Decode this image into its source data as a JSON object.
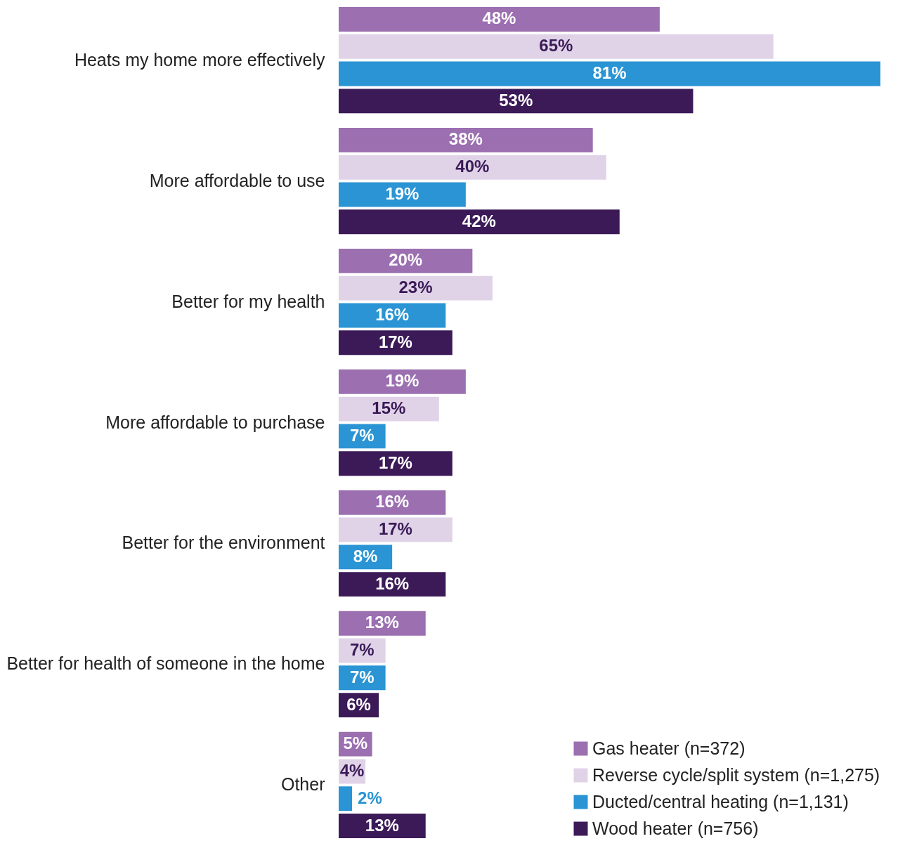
{
  "chart_data": {
    "type": "bar",
    "orientation": "horizontal",
    "legend": "bottom right",
    "categories": [
      "Heats my home more effectively",
      "More affordable to use",
      "Better for my health",
      "More affordable to purchase",
      "Better for the environment",
      "Better for health of someone in the home",
      "Other"
    ],
    "series": [
      {
        "name": "Gas heater (n=372)",
        "color": "#9b6fb0",
        "values": [
          48,
          38,
          20,
          19,
          16,
          13,
          5
        ],
        "value_labels": [
          "48%",
          "38%",
          "20%",
          "19%",
          "16%",
          "13%",
          "5%"
        ]
      },
      {
        "name": "Reverse cycle/split system (n=1,275)",
        "color": "#e0d3e8",
        "values": [
          65,
          40,
          23,
          15,
          17,
          7,
          4
        ],
        "value_labels": [
          "65%",
          "40%",
          "23%",
          "15%",
          "17%",
          "7%",
          "4%"
        ]
      },
      {
        "name": "Ducted/central heating (n=1,131)",
        "color": "#2a94d4",
        "values": [
          81,
          19,
          16,
          7,
          8,
          7,
          2
        ],
        "value_labels": [
          "81%",
          "19%",
          "16%",
          "7%",
          "8%",
          "7%",
          "2%"
        ]
      },
      {
        "name": "Wood heater (n=756)",
        "color": "#3b1a57",
        "values": [
          53,
          42,
          17,
          17,
          16,
          6,
          13
        ],
        "value_labels": [
          "53%",
          "42%",
          "17%",
          "17%",
          "16%",
          "6%",
          "13%"
        ]
      }
    ]
  }
}
